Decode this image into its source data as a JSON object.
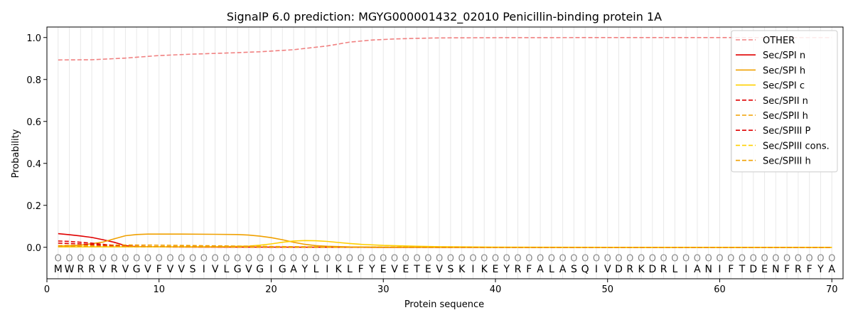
{
  "chart_data": {
    "type": "line",
    "title": "SignalP 6.0 prediction: MGYG000001432_02010 Penicillin-binding protein 1A",
    "xlabel": "Protein sequence",
    "ylabel": "Probability",
    "xlim": [
      0,
      71
    ],
    "ylim": [
      -0.15,
      1.05
    ],
    "xticks": [
      0,
      10,
      20,
      30,
      40,
      50,
      60,
      70
    ],
    "yticks": [
      0.0,
      0.2,
      0.4,
      0.6,
      0.8,
      1.0
    ],
    "ytick_labels": [
      "0.0",
      "0.2",
      "0.4",
      "0.6",
      "0.8",
      "1.0"
    ],
    "grid": "vertical lines at each residue",
    "legend_position": "top-right",
    "sequence": [
      "M",
      "W",
      "R",
      "R",
      "V",
      "R",
      "V",
      "G",
      "V",
      "F",
      "V",
      "V",
      "S",
      "I",
      "V",
      "L",
      "G",
      "V",
      "G",
      "I",
      "G",
      "A",
      "Y",
      "L",
      "I",
      "K",
      "L",
      "F",
      "Y",
      "E",
      "V",
      "E",
      "T",
      "E",
      "V",
      "S",
      "K",
      "I",
      "K",
      "E",
      "Y",
      "R",
      "F",
      "A",
      "L",
      "A",
      "S",
      "Q",
      "I",
      "V",
      "D",
      "R",
      "K",
      "D",
      "R",
      "L",
      "I",
      "A",
      "N",
      "I",
      "F",
      "T",
      "D",
      "E",
      "N",
      "F",
      "R",
      "F",
      "Y",
      "A"
    ],
    "position_marker": "O",
    "series": [
      {
        "name": "OTHER",
        "color": "#f08080",
        "dash": "dashed",
        "x": [
          1,
          4,
          7,
          10,
          13,
          16,
          19,
          22,
          25,
          27,
          29,
          31,
          33,
          35,
          40,
          50,
          60,
          70
        ],
        "y": [
          0.893,
          0.894,
          0.902,
          0.914,
          0.921,
          0.926,
          0.932,
          0.942,
          0.96,
          0.978,
          0.988,
          0.993,
          0.996,
          0.998,
          0.999,
          1.0,
          1.0,
          1.0
        ]
      },
      {
        "name": "Sec/SPI n",
        "color": "#e00000",
        "dash": "solid",
        "x": [
          1,
          2,
          3,
          4,
          5,
          6,
          7,
          8,
          10,
          15,
          20,
          30,
          40,
          50,
          60,
          70
        ],
        "y": [
          0.065,
          0.06,
          0.054,
          0.047,
          0.036,
          0.024,
          0.008,
          0.003,
          0.002,
          0.001,
          0.001,
          0.0,
          0.0,
          0.0,
          0.0,
          0.0
        ]
      },
      {
        "name": "Sec/SPI h",
        "color": "#f0a000",
        "dash": "solid",
        "x": [
          1,
          3,
          5,
          6,
          7,
          8,
          9,
          10,
          12,
          15,
          17,
          18,
          19,
          20,
          21,
          22,
          23,
          24,
          25,
          27,
          30,
          35,
          40,
          50,
          60,
          70
        ],
        "y": [
          0.005,
          0.01,
          0.025,
          0.04,
          0.055,
          0.061,
          0.063,
          0.063,
          0.063,
          0.062,
          0.061,
          0.058,
          0.053,
          0.046,
          0.036,
          0.024,
          0.014,
          0.008,
          0.005,
          0.002,
          0.001,
          0.0,
          0.0,
          0.0,
          0.0,
          0.0
        ]
      },
      {
        "name": "Sec/SPI c",
        "color": "#ffd000",
        "dash": "solid",
        "x": [
          1,
          5,
          10,
          15,
          18,
          19,
          20,
          21,
          22,
          23,
          24,
          25,
          26,
          27,
          28,
          30,
          33,
          35,
          40,
          50,
          60,
          70
        ],
        "y": [
          0.002,
          0.002,
          0.002,
          0.003,
          0.006,
          0.01,
          0.016,
          0.024,
          0.03,
          0.032,
          0.031,
          0.028,
          0.023,
          0.018,
          0.014,
          0.009,
          0.005,
          0.003,
          0.001,
          0.0,
          0.0,
          0.0
        ]
      },
      {
        "name": "Sec/SPII n",
        "color": "#e00000",
        "dash": "dashed",
        "x": [
          1,
          2,
          3,
          4,
          5,
          6,
          7,
          8,
          10,
          15,
          20,
          30,
          40,
          50,
          60,
          70
        ],
        "y": [
          0.03,
          0.028,
          0.024,
          0.02,
          0.014,
          0.009,
          0.005,
          0.003,
          0.002,
          0.001,
          0.0,
          0.0,
          0.0,
          0.0,
          0.0,
          0.0
        ]
      },
      {
        "name": "Sec/SPII h",
        "color": "#f0a000",
        "dash": "dashed",
        "x": [
          1,
          3,
          5,
          7,
          10,
          15,
          20,
          25,
          30,
          40,
          50,
          60,
          70
        ],
        "y": [
          0.008,
          0.01,
          0.011,
          0.011,
          0.01,
          0.007,
          0.004,
          0.002,
          0.001,
          0.0,
          0.0,
          0.0,
          0.0
        ]
      },
      {
        "name": "Sec/SPIII P",
        "color": "#e00000",
        "dash": "dashed",
        "x": [
          1,
          3,
          5,
          7,
          10,
          20,
          30,
          40,
          50,
          60,
          70
        ],
        "y": [
          0.02,
          0.016,
          0.01,
          0.005,
          0.003,
          0.001,
          0.0,
          0.0,
          0.0,
          0.0,
          0.0
        ]
      },
      {
        "name": "Sec/SPIII cons.",
        "color": "#ffd000",
        "dash": "dashed",
        "x": [
          1,
          5,
          10,
          20,
          30,
          40,
          50,
          60,
          70
        ],
        "y": [
          0.003,
          0.003,
          0.002,
          0.001,
          0.0,
          0.0,
          0.0,
          0.0,
          0.0
        ]
      },
      {
        "name": "Sec/SPIII h",
        "color": "#f0a000",
        "dash": "dashed",
        "x": [
          1,
          3,
          5,
          7,
          10,
          20,
          30,
          40,
          50,
          60,
          70
        ],
        "y": [
          0.004,
          0.005,
          0.005,
          0.004,
          0.003,
          0.002,
          0.001,
          0.0,
          0.0,
          0.0,
          0.0
        ]
      }
    ]
  }
}
